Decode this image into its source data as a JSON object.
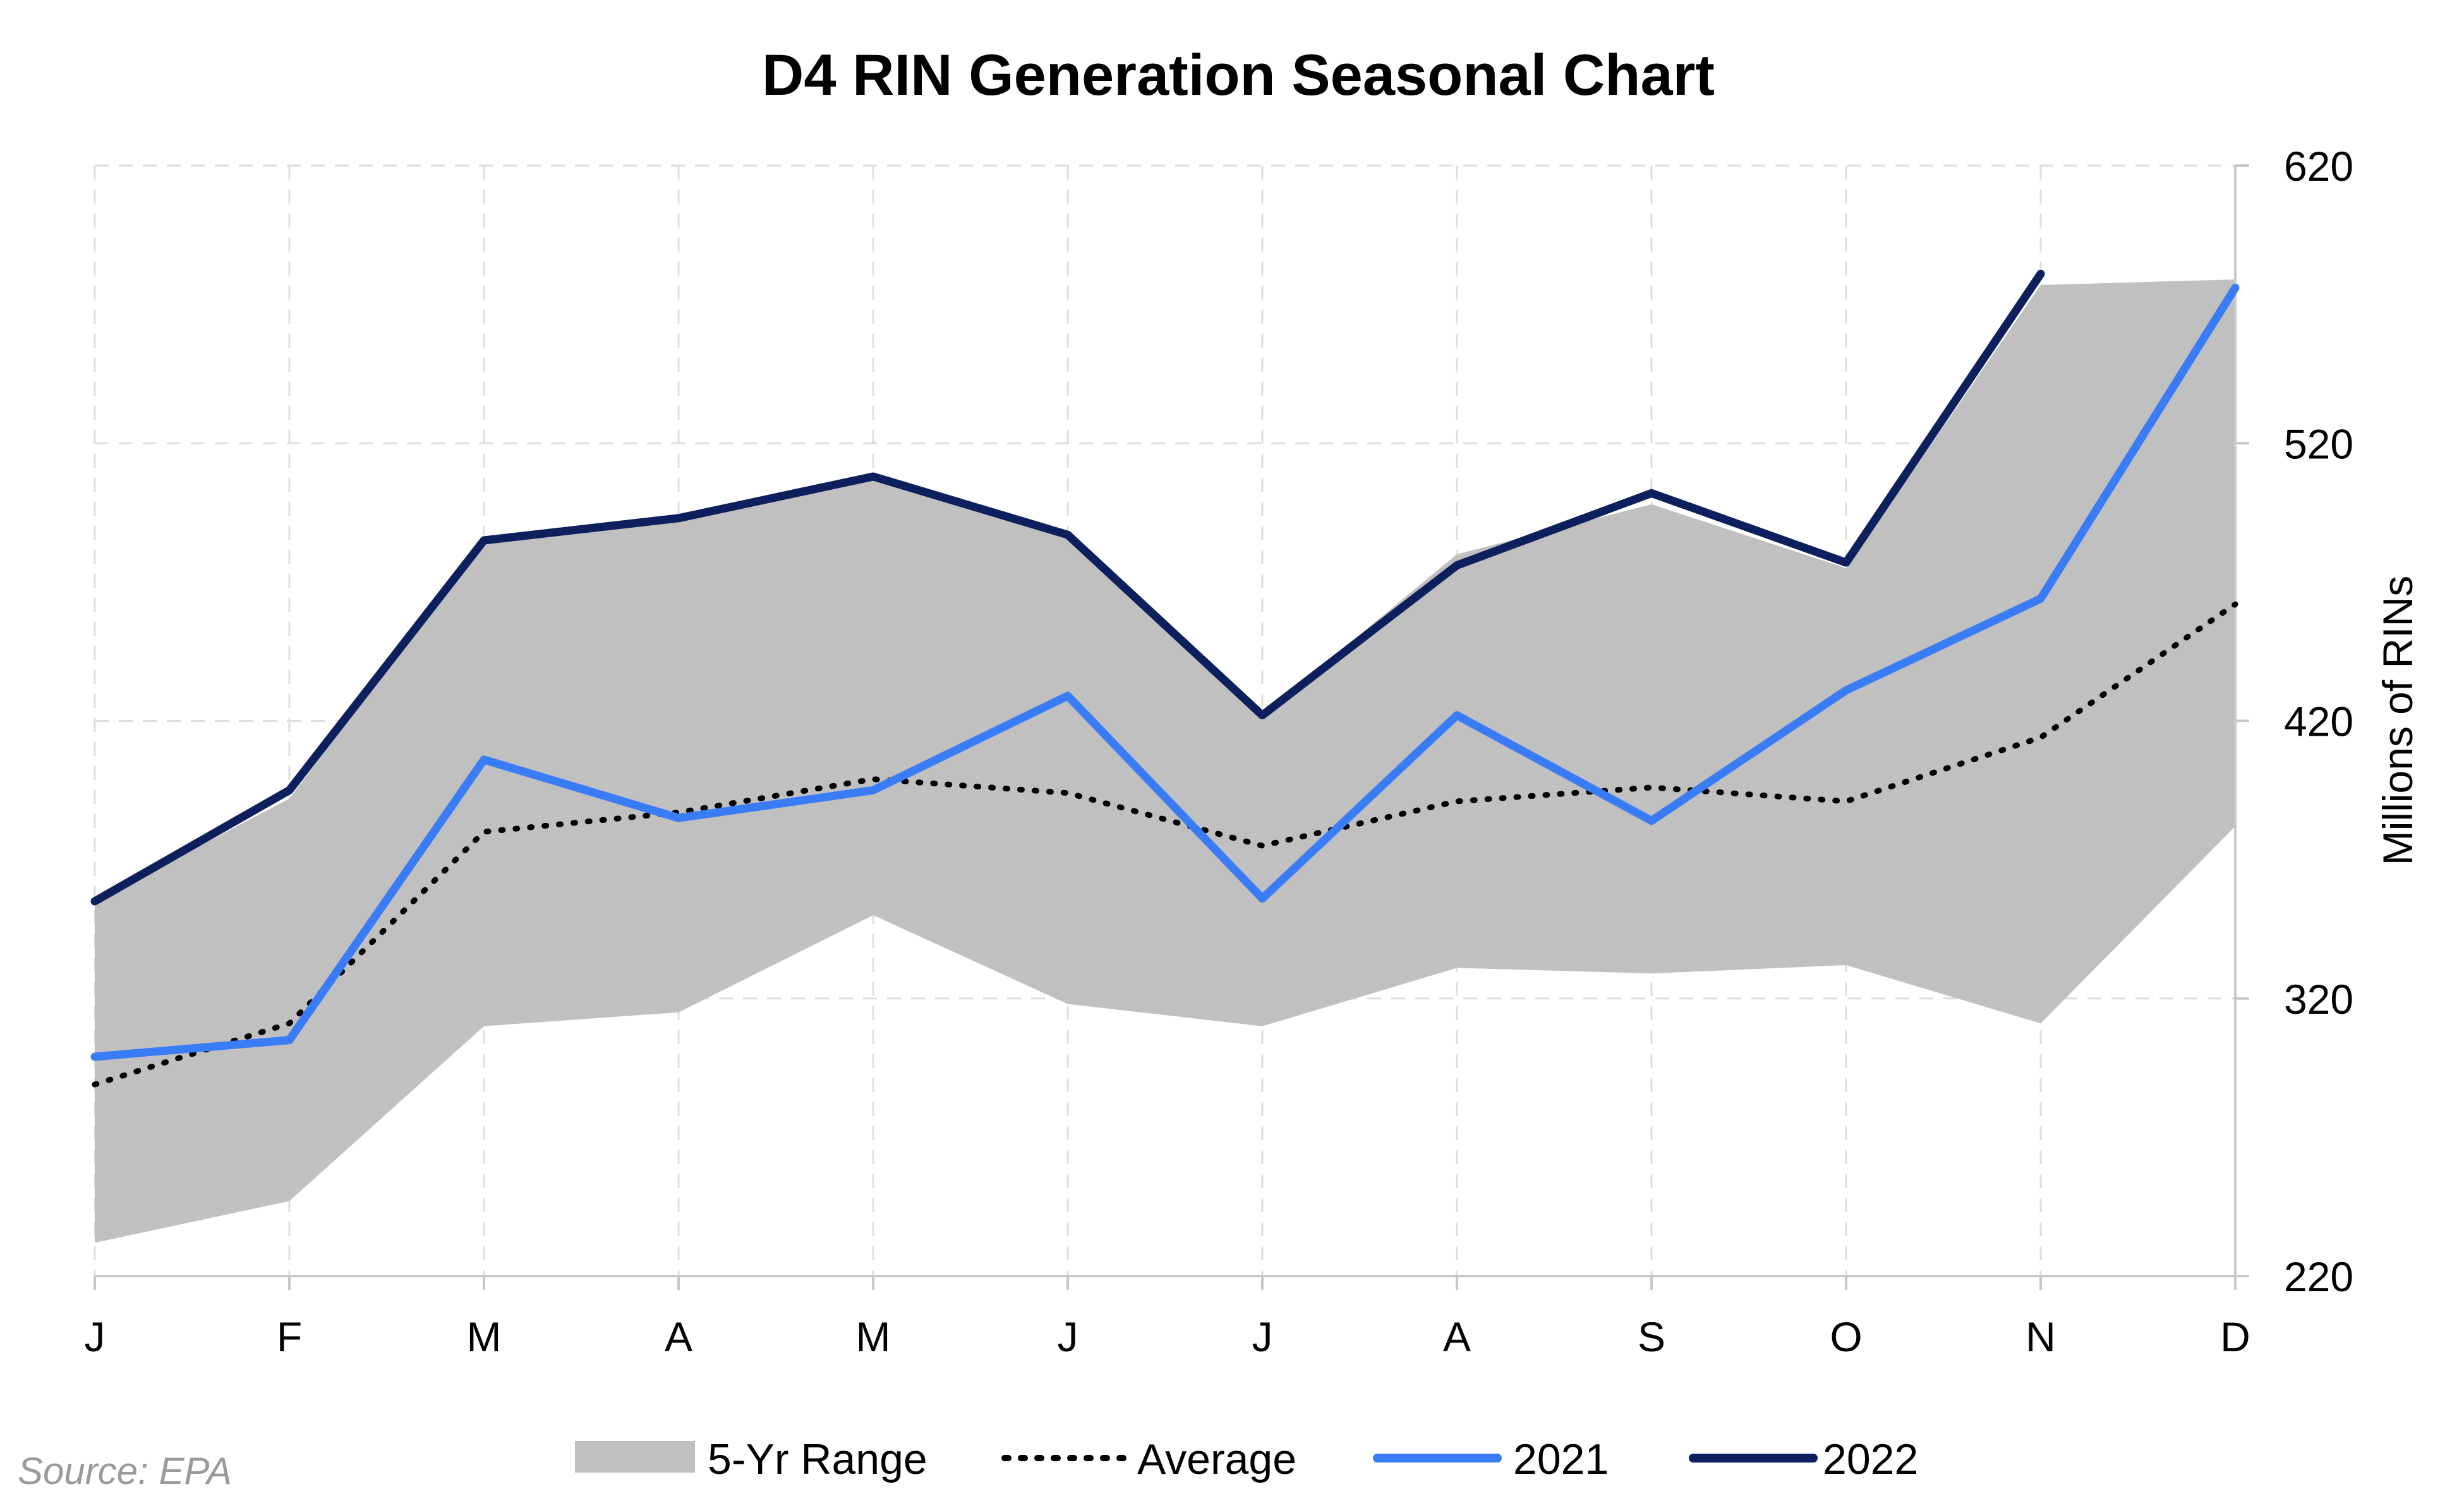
{
  "chart_data": {
    "type": "line",
    "title": "D4 RIN Generation Seasonal Chart",
    "ylabel": "Millions of RINs",
    "xlabel": "",
    "source": "Source: EPA",
    "categories": [
      "J",
      "F",
      "M",
      "A",
      "M",
      "J",
      "J",
      "A",
      "S",
      "O",
      "N",
      "D"
    ],
    "y_ticks": [
      "620",
      "520",
      "420",
      "320",
      "220"
    ],
    "ylim": [
      220,
      620
    ],
    "y_axis_side": "right",
    "grid": true,
    "legend_position": "bottom",
    "range": {
      "name": "5-Yr Range",
      "color": "#c0c0c0",
      "low": [
        232,
        247,
        310,
        315,
        350,
        318,
        310,
        331,
        329,
        332,
        311,
        382
      ],
      "high": [
        355,
        392,
        485,
        493,
        508,
        487,
        422,
        480,
        498,
        475,
        577,
        579
      ]
    },
    "series": [
      {
        "name": "Average",
        "style": "dotted",
        "color": "#000000",
        "values": [
          289,
          311,
          380,
          387,
          399,
          394,
          375,
          391,
          396,
          391,
          414,
          462
        ]
      },
      {
        "name": "2021",
        "style": "solid",
        "color": "#3a7bf6",
        "values": [
          299,
          305,
          406,
          385,
          395,
          429,
          356,
          422,
          384,
          431,
          464,
          576
        ]
      },
      {
        "name": "2022",
        "style": "solid",
        "color": "#0d1f5c",
        "values": [
          355,
          395,
          485,
          493,
          508,
          487,
          422,
          476,
          502,
          477,
          581,
          null
        ]
      }
    ]
  }
}
